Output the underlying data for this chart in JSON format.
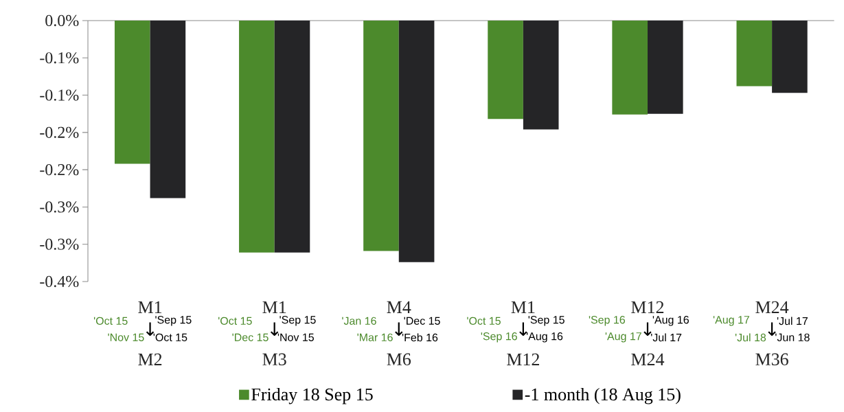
{
  "chart_data": {
    "type": "bar",
    "categories": [
      "M1",
      "M1",
      "M4",
      "M1",
      "M12",
      "M24"
    ],
    "series": [
      {
        "name": "Friday 18 Sep 15",
        "color": "#4c8a2c",
        "values": [
          -0.192,
          -0.311,
          -0.309,
          -0.132,
          -0.126,
          -0.088
        ]
      },
      {
        "name": "-1 month (18 Aug 15)",
        "color": "#252527",
        "values": [
          -0.238,
          -0.311,
          -0.324,
          -0.146,
          -0.125,
          -0.097
        ]
      }
    ],
    "ylim": [
      -0.35,
      0
    ],
    "yticks": [
      {
        "value": 0,
        "label": "0.0%"
      },
      {
        "value": -0.05,
        "label": "-0.1%"
      },
      {
        "value": -0.1,
        "label": "-0.1%"
      },
      {
        "value": -0.15,
        "label": "-0.2%"
      },
      {
        "value": -0.2,
        "label": "-0.2%"
      },
      {
        "value": -0.25,
        "label": "-0.3%"
      },
      {
        "value": -0.3,
        "label": "-0.3%"
      },
      {
        "value": -0.35,
        "label": "-0.4%"
      }
    ],
    "grid": false,
    "legend": "bottom",
    "annotations": [
      "'Oct 15",
      "'Sep 15",
      "'Nov 15",
      "↓",
      "'Oct 15",
      "M2",
      "'Oct 15",
      "'Sep 15",
      "'Dec 15",
      "↓",
      "'Nov 15",
      "M3",
      "'Jan 16",
      "'Dec 15",
      "'Mar 16",
      "↓",
      "'Feb 16",
      "M6",
      "'Oct 15",
      "'Sep 15",
      "'Sep 16",
      "↓",
      "'Aug 16",
      "M12",
      "'Sep 16",
      "'Aug 16",
      "'Aug 17",
      "↓",
      "'Jul 17",
      "M24",
      "'Aug 17",
      "'Jul 17",
      "'Jul 18",
      "↓",
      "'Jun 18",
      "M36"
    ]
  }
}
